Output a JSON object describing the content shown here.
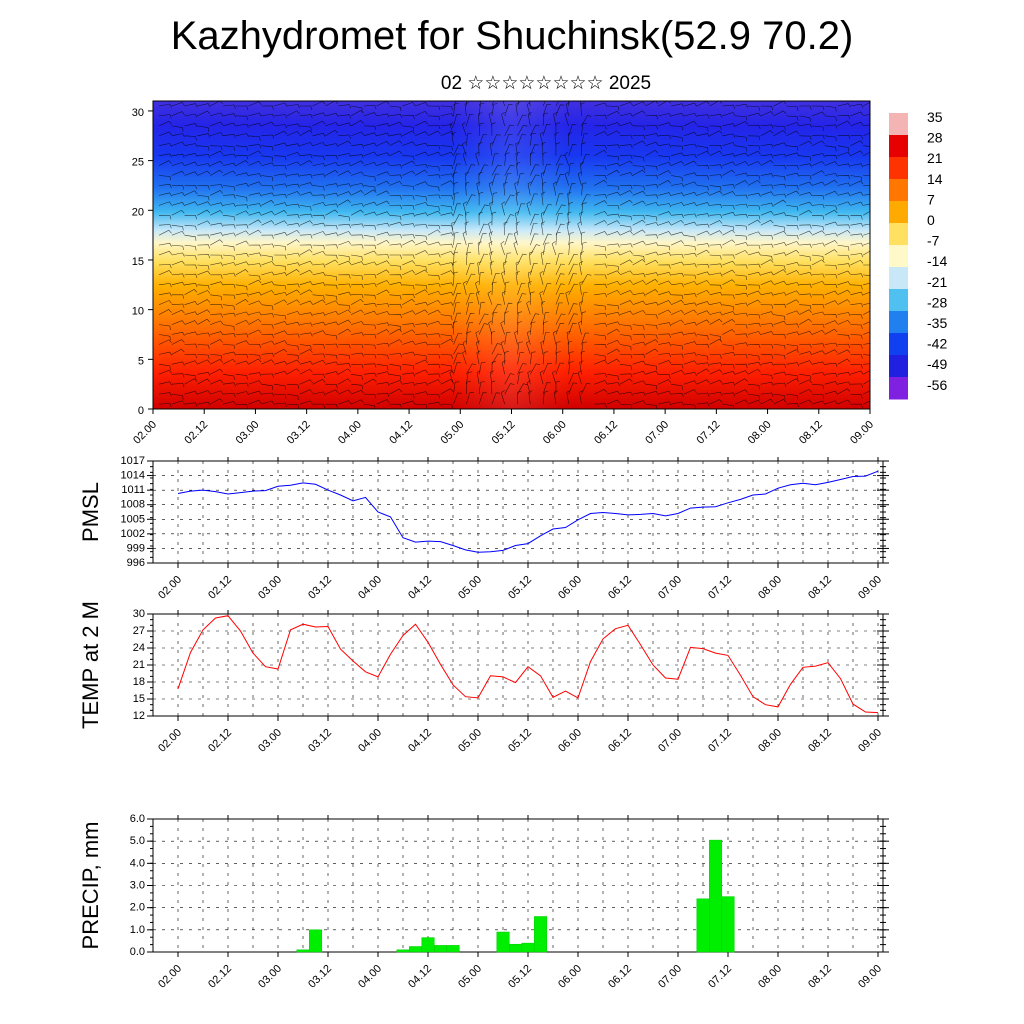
{
  "header": {
    "title": "Kazhydromet for Shuchinsk(52.9 70.2)",
    "subtitle": "02 ☆☆☆☆☆☆☆☆ 2025"
  },
  "chart_data": [
    {
      "type": "heatmap",
      "name": "vertical-cross-section",
      "description_source": "filled contours with wind barbs",
      "xlabel": "",
      "ylabel": "",
      "x_ticks": [
        "02.00",
        "02.12",
        "03.00",
        "03.12",
        "04.00",
        "04.12",
        "05.00",
        "05.12",
        "06.00",
        "06.12",
        "07.00",
        "07.12",
        "08.00",
        "08.12",
        "09.00"
      ],
      "y_ticks": [
        0,
        5,
        10,
        15,
        20,
        25,
        30
      ],
      "ylim": [
        0,
        31
      ],
      "colorbar_labels": [
        "35",
        "28",
        "21",
        "14",
        "7",
        "0",
        "-7",
        "-14",
        "-21",
        "-28",
        "-35",
        "-42",
        "-49",
        "-56"
      ],
      "colors": {
        "scale": [
          "#f4b4b4",
          "#e60000",
          "#ff3300",
          "#ff7700",
          "#ffaa00",
          "#ffe060",
          "#fff8c8",
          "#c8e8f8",
          "#50c0f0",
          "#2080f0",
          "#1040f0",
          "#2020e0",
          "#8020e0"
        ]
      }
    },
    {
      "type": "line",
      "ylabel": "PMSL",
      "ylim": [
        996,
        1017
      ],
      "y_ticks": [
        "996",
        "999",
        "1002",
        "1005",
        "1008",
        "1011",
        "1014",
        "1017"
      ],
      "x_ticks": [
        "02.00",
        "02.12",
        "03.00",
        "03.12",
        "04.00",
        "04.12",
        "05.00",
        "05.12",
        "06.00",
        "06.12",
        "07.00",
        "07.12",
        "08.00",
        "08.12",
        "09.00"
      ],
      "series": [
        {
          "color": "#0000ff",
          "x": [
            0,
            1,
            2,
            3,
            4,
            5,
            6,
            7,
            8,
            9,
            10,
            11,
            12,
            13,
            14,
            15,
            16,
            17,
            18,
            19,
            20,
            21,
            22,
            23,
            24,
            25,
            26,
            27,
            28,
            29,
            30,
            31,
            32,
            33,
            34,
            35,
            36,
            37,
            38,
            39,
            40,
            41,
            42,
            43,
            44,
            45,
            46,
            47,
            48,
            49,
            50,
            51,
            52,
            53,
            54,
            55,
            56
          ],
          "values": [
            1010.3,
            1010.8,
            1011.0,
            1010.7,
            1010.2,
            1010.5,
            1010.8,
            1010.9,
            1011.8,
            1012.0,
            1012.5,
            1012.2,
            1011.0,
            1010.0,
            1008.8,
            1009.5,
            1006.5,
            1005.5,
            1001.2,
            1000.3,
            1000.5,
            1000.4,
            999.6,
            998.7,
            998.2,
            998.3,
            998.6,
            999.6,
            1000.0,
            1001.6,
            1003.0,
            1003.3,
            1004.9,
            1006.2,
            1006.4,
            1006.2,
            1005.9,
            1006.0,
            1006.2,
            1005.7,
            1006.2,
            1007.3,
            1007.5,
            1007.6,
            1008.4,
            1009.1,
            1010.0,
            1010.2,
            1011.4,
            1012.1,
            1012.4,
            1012.1,
            1012.6,
            1013.2,
            1013.8,
            1013.9,
            1014.9
          ]
        }
      ]
    },
    {
      "type": "line",
      "ylabel": "TEMP at 2 M",
      "ylim": [
        12,
        30
      ],
      "y_ticks": [
        "12",
        "15",
        "18",
        "21",
        "24",
        "27",
        "30"
      ],
      "x_ticks": [
        "02.00",
        "02.12",
        "03.00",
        "03.12",
        "04.00",
        "04.12",
        "05.00",
        "05.12",
        "06.00",
        "06.12",
        "07.00",
        "07.12",
        "08.00",
        "08.12",
        "09.00"
      ],
      "series": [
        {
          "color": "#ff0000",
          "x": [
            0,
            1,
            2,
            3,
            4,
            5,
            6,
            7,
            8,
            9,
            10,
            11,
            12,
            13,
            14,
            15,
            16,
            17,
            18,
            19,
            20,
            21,
            22,
            23,
            24,
            25,
            26,
            27,
            28,
            29,
            30,
            31,
            32,
            33,
            34,
            35,
            36,
            37,
            38,
            39,
            40,
            41,
            42,
            43,
            44,
            45,
            46,
            47,
            48,
            49,
            50,
            51,
            52,
            53,
            54,
            55,
            56
          ],
          "values": [
            16.8,
            23.2,
            27.2,
            29.3,
            29.7,
            27.0,
            23.1,
            20.7,
            20.3,
            27.2,
            28.2,
            27.7,
            27.8,
            23.8,
            21.7,
            19.8,
            18.9,
            22.9,
            26.2,
            28.2,
            25.0,
            21.1,
            17.5,
            15.4,
            15.2,
            19.1,
            18.9,
            17.9,
            20.7,
            19.1,
            15.3,
            16.4,
            15.2,
            21.6,
            25.6,
            27.4,
            28.0,
            24.6,
            21.0,
            18.7,
            18.5,
            24.1,
            23.9,
            23.1,
            22.7,
            19.2,
            15.4,
            14.0,
            13.6,
            17.6,
            20.6,
            20.8,
            21.4,
            18.6,
            14.1,
            12.7,
            12.6
          ]
        }
      ]
    },
    {
      "type": "bar",
      "ylabel": "PRECIP, mm",
      "ylim": [
        0,
        6
      ],
      "y_ticks": [
        "0.0",
        "1.0",
        "2.0",
        "3.0",
        "4.0",
        "5.0",
        "6.0"
      ],
      "x_ticks": [
        "02.00",
        "02.12",
        "03.00",
        "03.12",
        "04.00",
        "04.12",
        "05.00",
        "05.12",
        "06.00",
        "06.12",
        "07.00",
        "07.12",
        "08.00",
        "08.12",
        "09.00"
      ],
      "bar_color": "#00ee00",
      "series": [
        {
          "x": [
            10,
            11,
            18,
            19,
            20,
            21,
            22,
            26,
            27,
            28,
            29,
            42,
            43,
            44
          ],
          "values": [
            0.1,
            1.0,
            0.1,
            0.25,
            0.65,
            0.3,
            0.3,
            0.9,
            0.35,
            0.4,
            1.6,
            2.4,
            5.05,
            2.5
          ]
        }
      ]
    }
  ]
}
